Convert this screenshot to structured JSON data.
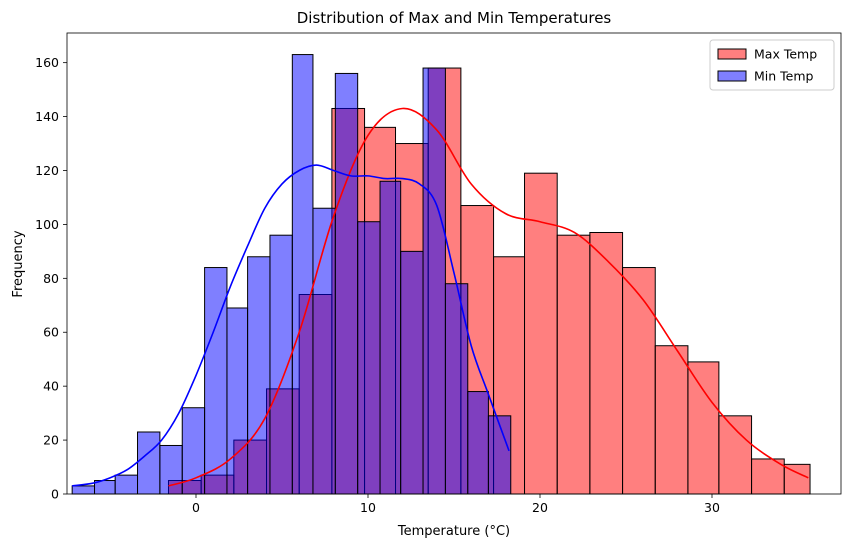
{
  "chart_data": {
    "type": "histogram",
    "title": "Distribution of Max and Min Temperatures",
    "xlabel": "Temperature (°C)",
    "ylabel": "Frequency",
    "xlim": [
      -7.5,
      37.5
    ],
    "ylim": [
      0,
      171
    ],
    "xticks": [
      0,
      10,
      20,
      30
    ],
    "yticks": [
      0,
      20,
      40,
      60,
      80,
      100,
      120,
      140,
      160
    ],
    "grid": false,
    "legend_position": "top-right",
    "series": [
      {
        "name": "Max Temp",
        "color": "#ff0000",
        "fill": "#ff8080",
        "bin_edges": [
          -1.6,
          0.3,
          2.2,
          4.1,
          6.0,
          7.9,
          9.8,
          11.6,
          13.5,
          15.4,
          17.3,
          19.1,
          21.0,
          22.9,
          24.8,
          26.7,
          28.6,
          30.4,
          32.3,
          34.2,
          35.7
        ],
        "counts": [
          5,
          7,
          20,
          39,
          74,
          143,
          136,
          130,
          158,
          107,
          88,
          119,
          96,
          97,
          84,
          55,
          49,
          29,
          13,
          11
        ],
        "kde": [
          [
            -1.6,
            3
          ],
          [
            0,
            6
          ],
          [
            2,
            13
          ],
          [
            4,
            28
          ],
          [
            6,
            60
          ],
          [
            8,
            103
          ],
          [
            10,
            133
          ],
          [
            12,
            143
          ],
          [
            14,
            135
          ],
          [
            16,
            115
          ],
          [
            18,
            104
          ],
          [
            20,
            101
          ],
          [
            22,
            97
          ],
          [
            24,
            86
          ],
          [
            26,
            72
          ],
          [
            28,
            53
          ],
          [
            30,
            34
          ],
          [
            32,
            20
          ],
          [
            34,
            11
          ],
          [
            35.6,
            6
          ]
        ]
      },
      {
        "name": "Min Temp",
        "color": "#0000ff",
        "fill": "#8080ff",
        "bin_edges": [
          -7.2,
          -5.9,
          -4.7,
          -3.4,
          -2.1,
          -0.8,
          0.5,
          1.8,
          3.0,
          4.3,
          5.6,
          6.8,
          8.1,
          9.4,
          10.7,
          11.9,
          13.2,
          14.5,
          15.8,
          17.0,
          18.3
        ],
        "counts": [
          3,
          5,
          7,
          23,
          18,
          32,
          84,
          69,
          88,
          96,
          163,
          106,
          156,
          101,
          116,
          90,
          158,
          78,
          38,
          29
        ],
        "kde": [
          [
            -7.2,
            3
          ],
          [
            -6,
            4
          ],
          [
            -5,
            6
          ],
          [
            -4,
            9
          ],
          [
            -3,
            14
          ],
          [
            -2,
            20
          ],
          [
            -1,
            30
          ],
          [
            0,
            44
          ],
          [
            1,
            60
          ],
          [
            2,
            77
          ],
          [
            3,
            92
          ],
          [
            4,
            106
          ],
          [
            5,
            115
          ],
          [
            6,
            120
          ],
          [
            7,
            122
          ],
          [
            8,
            120
          ],
          [
            9,
            118
          ],
          [
            10,
            118
          ],
          [
            11,
            117
          ],
          [
            12,
            117
          ],
          [
            13,
            115
          ],
          [
            14,
            107
          ],
          [
            15,
            82
          ],
          [
            16,
            55
          ],
          [
            17,
            37
          ],
          [
            18.2,
            16
          ]
        ]
      }
    ]
  }
}
